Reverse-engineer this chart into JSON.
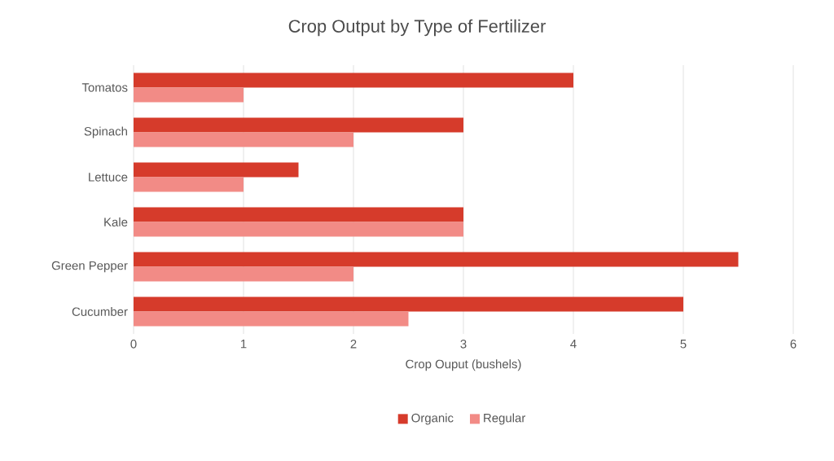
{
  "chart_data": {
    "type": "bar",
    "orientation": "horizontal",
    "title": "Crop Output by Type of Fertilizer",
    "xlabel": "Crop Ouput (bushels)",
    "categories": [
      "Tomatos",
      "Spinach",
      "Lettuce",
      "Kale",
      "Green Pepper",
      "Cucumber"
    ],
    "series": [
      {
        "name": "Organic",
        "color": "#d63b2b",
        "values": [
          4,
          3,
          1.5,
          3,
          5.5,
          5
        ]
      },
      {
        "name": "Regular",
        "color": "#f28b86",
        "values": [
          1,
          2,
          1,
          3,
          2,
          2.5
        ]
      }
    ],
    "xlim": [
      0,
      6
    ],
    "xticks": [
      0,
      1,
      2,
      3,
      4,
      5,
      6
    ],
    "grid": "x",
    "legend": "bottom"
  }
}
